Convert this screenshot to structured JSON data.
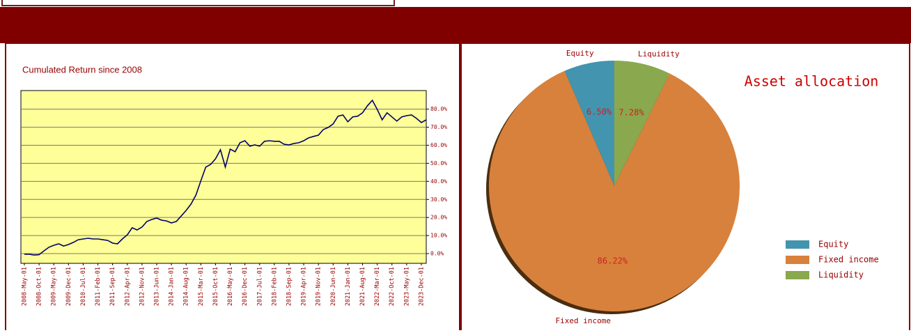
{
  "chart_data": [
    {
      "type": "line",
      "title": "Cumulated Return since 2008",
      "categories": [
        "2008-May-01",
        null,
        null,
        "2008-Oct-01",
        null,
        null,
        "2009-May-01",
        null,
        null,
        "2009-Dec-01",
        null,
        null,
        "2010-Jul-01",
        null,
        null,
        "2011-Feb-01",
        null,
        null,
        "2011-Sep-01",
        null,
        null,
        "2012-Apr-01",
        null,
        null,
        "2012-Nov-01",
        null,
        null,
        "2013-Jun-01",
        null,
        null,
        "2014-Jan-01",
        null,
        null,
        "2014-Aug-01",
        null,
        null,
        "2015-Mar-01",
        null,
        null,
        "2015-Oct-01",
        null,
        null,
        "2016-May-01",
        null,
        null,
        "2016-Dec-01",
        null,
        null,
        "2017-Jul-01",
        null,
        null,
        "2018-Feb-01",
        null,
        null,
        "2018-Sep-01",
        null,
        null,
        "2019-Apr-01",
        null,
        null,
        "2019-Nov-01",
        null,
        null,
        "2020-Jun-01",
        null,
        null,
        "2021-Jan-01",
        null,
        null,
        "2021-Aug-01",
        null,
        null,
        "2022-Mar-01",
        null,
        null,
        "2022-Oct-01",
        null,
        null,
        "2023-May-01",
        null,
        null,
        "2023-Dec-01",
        null
      ],
      "values": [
        -0.4,
        -0.4,
        -0.8,
        -0.6,
        1.5,
        3.5,
        4.6,
        5.4,
        4.2,
        5.0,
        6.2,
        7.7,
        8.1,
        8.5,
        8.1,
        8.1,
        7.7,
        7.3,
        5.8,
        5.4,
        8.1,
        10.4,
        14.3,
        13.1,
        14.7,
        17.8,
        18.9,
        19.7,
        18.5,
        18.1,
        17.0,
        17.8,
        20.8,
        23.9,
        27.4,
        32.4,
        40.2,
        47.9,
        49.4,
        52.5,
        57.5,
        47.9,
        57.9,
        56.4,
        61.4,
        62.5,
        59.5,
        60.2,
        59.5,
        62.2,
        62.5,
        62.2,
        62.2,
        60.6,
        60.2,
        61.0,
        61.4,
        62.5,
        64.1,
        64.9,
        65.6,
        68.7,
        69.9,
        71.8,
        76.1,
        76.8,
        73.0,
        75.7,
        76.1,
        78.0,
        81.9,
        84.9,
        79.9,
        74.1,
        78.0,
        75.7,
        73.4,
        75.7,
        76.4,
        76.8,
        74.9,
        72.6,
        74.1
      ],
      "color": "#000066",
      "background": "#ffff99",
      "ylim": [
        -5.4,
        90.3
      ],
      "yticks": [
        {
          "value": 0,
          "label": "0.0%"
        },
        {
          "value": 10,
          "label": "10.0%"
        },
        {
          "value": 20,
          "label": "20.0%"
        },
        {
          "value": 30,
          "label": "30.0%"
        },
        {
          "value": 40,
          "label": "40.0%"
        },
        {
          "value": 50,
          "label": "50.0%"
        },
        {
          "value": 60,
          "label": "60.0%"
        },
        {
          "value": 70,
          "label": "70.0%"
        },
        {
          "value": 80,
          "label": "80.0%"
        }
      ],
      "grid": true
    },
    {
      "type": "pie",
      "title": "Asset allocation",
      "categories": [
        "Equity",
        "Fixed income",
        "Liquidity"
      ],
      "values": [
        6.5,
        86.22,
        7.28
      ],
      "value_labels": [
        "6.50%",
        "86.22%",
        "7.28%"
      ],
      "colors": [
        "#4394ae",
        "#d8813c",
        "#8aa84d"
      ],
      "legend": "right"
    }
  ]
}
